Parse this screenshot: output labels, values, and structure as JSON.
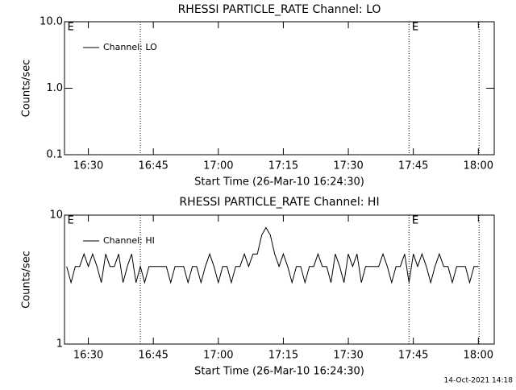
{
  "chart_data": [
    {
      "type": "line",
      "title": "RHESSI PARTICLE_RATE Channel: LO",
      "xlabel": "Start Time (26-Mar-10 16:24:30)",
      "ylabel": "Counts/sec",
      "xlim": [
        "16:24:30",
        "18:03:40"
      ],
      "xticks": [
        "16:30",
        "16:45",
        "17:00",
        "17:15",
        "17:30",
        "17:45",
        "18:00"
      ],
      "ylim": [
        0.1,
        10
      ],
      "yticks": [
        {
          "value": 0.1,
          "label": "0.1"
        },
        {
          "value": 1,
          "label": "1.0"
        },
        {
          "value": 10,
          "label": "10.0"
        }
      ],
      "log_y": true,
      "vlines": [
        "16:42",
        "17:44",
        "18:00:10"
      ],
      "annotations": [
        {
          "text": "E",
          "x": "16:25"
        },
        {
          "text": "E",
          "x": "17:44:30"
        }
      ],
      "x": [],
      "series": [
        {
          "name": "Channel: LO",
          "color": "#000000",
          "values": []
        }
      ],
      "legend": "upper left"
    },
    {
      "type": "line",
      "title": "RHESSI PARTICLE_RATE Channel: HI",
      "xlabel": "Start Time (26-Mar-10 16:24:30)",
      "ylabel": "Counts/sec",
      "xlim": [
        "16:24:30",
        "18:03:40"
      ],
      "xticks": [
        "16:30",
        "16:45",
        "17:00",
        "17:15",
        "17:30",
        "17:45",
        "18:00"
      ],
      "ylim": [
        1,
        10
      ],
      "yticks": [
        1,
        10
      ],
      "log_y": true,
      "vlines": [
        "16:42",
        "17:44",
        "18:00:10"
      ],
      "annotations": [
        {
          "text": "E",
          "x": "16:25"
        },
        {
          "text": "E",
          "x": "17:44:30"
        }
      ],
      "x": [
        "16:25",
        "16:26",
        "16:27",
        "16:28",
        "16:29",
        "16:30",
        "16:31",
        "16:32",
        "16:33",
        "16:34",
        "16:35",
        "16:36",
        "16:37",
        "16:38",
        "16:39",
        "16:40",
        "16:41",
        "16:42",
        "16:43",
        "16:44",
        "16:45",
        "16:46",
        "16:47",
        "16:48",
        "16:49",
        "16:50",
        "16:51",
        "16:52",
        "16:53",
        "16:54",
        "16:55",
        "16:56",
        "16:57",
        "16:58",
        "16:59",
        "17:00",
        "17:01",
        "17:02",
        "17:03",
        "17:04",
        "17:05",
        "17:06",
        "17:07",
        "17:08",
        "17:09",
        "17:10",
        "17:11",
        "17:12",
        "17:13",
        "17:14",
        "17:15",
        "17:16",
        "17:17",
        "17:18",
        "17:19",
        "17:20",
        "17:21",
        "17:22",
        "17:23",
        "17:24",
        "17:25",
        "17:26",
        "17:27",
        "17:28",
        "17:29",
        "17:30",
        "17:31",
        "17:32",
        "17:33",
        "17:34",
        "17:35",
        "17:36",
        "17:37",
        "17:38",
        "17:39",
        "17:40",
        "17:41",
        "17:42",
        "17:43",
        "17:44",
        "17:45",
        "17:46",
        "17:47",
        "17:48",
        "17:49",
        "17:50",
        "17:51",
        "17:52",
        "17:53",
        "17:54",
        "17:55",
        "17:56",
        "17:57",
        "17:58",
        "17:59",
        "18:00"
      ],
      "series": [
        {
          "name": "Channel: HI",
          "color": "#000000",
          "values": [
            4,
            3,
            4,
            4,
            5,
            4,
            5,
            4,
            3,
            5,
            4,
            4,
            5,
            3,
            4,
            5,
            3,
            4,
            3,
            4,
            4,
            4,
            4,
            4,
            3,
            4,
            4,
            4,
            3,
            4,
            4,
            3,
            4,
            5,
            4,
            3,
            4,
            4,
            3,
            4,
            4,
            5,
            4,
            5,
            5,
            7,
            8,
            7,
            5,
            4,
            5,
            4,
            3,
            4,
            4,
            3,
            4,
            4,
            5,
            4,
            4,
            3,
            5,
            4,
            3,
            5,
            4,
            5,
            3,
            4,
            4,
            4,
            4,
            5,
            4,
            3,
            4,
            4,
            5,
            3,
            5,
            4,
            5,
            4,
            3,
            4,
            5,
            4,
            4,
            3,
            4,
            4,
            4,
            3,
            4,
            4
          ]
        }
      ],
      "legend": "upper left"
    }
  ],
  "footer": "14-Oct-2021 14:18"
}
